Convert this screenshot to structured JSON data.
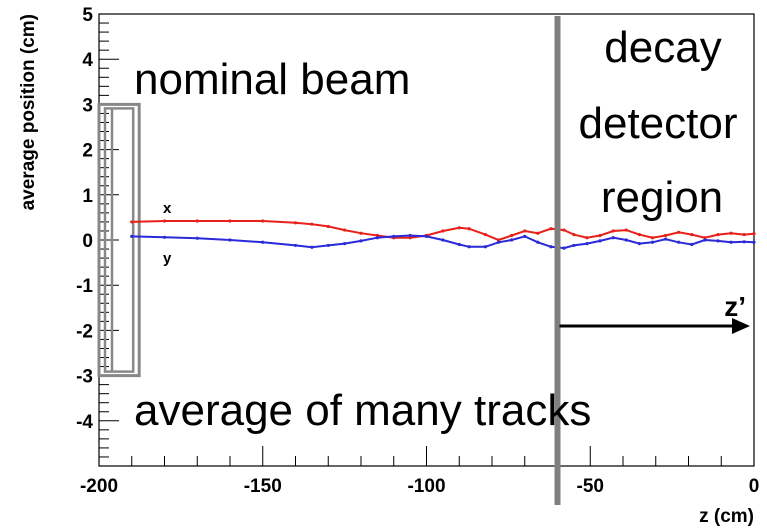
{
  "chart_data": {
    "type": "line",
    "title": "",
    "xlabel": "z (cm)",
    "ylabel": "average position (cm)",
    "xlim": [
      -200,
      0
    ],
    "ylim": [
      -5,
      5
    ],
    "x_ticks": [
      -200,
      -150,
      -100,
      -50,
      0
    ],
    "y_ticks": [
      5,
      4,
      3,
      2,
      1,
      0,
      -1,
      -2,
      -3,
      -4
    ],
    "grid": false,
    "series": [
      {
        "name": "x",
        "color": "#e8201a",
        "x": [
          -190,
          -180,
          -170,
          -160,
          -150,
          -140,
          -135,
          -130,
          -125,
          -120,
          -115,
          -110,
          -105,
          -100,
          -95,
          -90,
          -87,
          -82,
          -78,
          -74,
          -70,
          -66,
          -62,
          -58,
          -55,
          -51,
          -47,
          -43,
          -39,
          -35,
          -31,
          -27,
          -23,
          -19,
          -15,
          -11,
          -7,
          -3,
          0
        ],
        "values": [
          0.4,
          0.42,
          0.42,
          0.42,
          0.42,
          0.38,
          0.35,
          0.3,
          0.22,
          0.15,
          0.1,
          0.05,
          0.05,
          0.1,
          0.2,
          0.27,
          0.25,
          0.12,
          0.0,
          0.1,
          0.2,
          0.15,
          0.25,
          0.22,
          0.12,
          0.05,
          0.1,
          0.2,
          0.22,
          0.12,
          0.05,
          0.1,
          0.17,
          0.12,
          0.05,
          0.12,
          0.15,
          0.12,
          0.14
        ]
      },
      {
        "name": "y",
        "color": "#2a2ad8",
        "x": [
          -190,
          -180,
          -170,
          -160,
          -150,
          -140,
          -135,
          -130,
          -125,
          -120,
          -115,
          -110,
          -105,
          -100,
          -95,
          -90,
          -87,
          -82,
          -78,
          -74,
          -70,
          -66,
          -62,
          -58,
          -55,
          -51,
          -47,
          -43,
          -39,
          -35,
          -31,
          -27,
          -23,
          -19,
          -15,
          -11,
          -7,
          -3,
          0
        ],
        "values": [
          0.08,
          0.06,
          0.04,
          0.0,
          -0.05,
          -0.12,
          -0.16,
          -0.12,
          -0.08,
          -0.02,
          0.05,
          0.08,
          0.1,
          0.08,
          0.0,
          -0.1,
          -0.15,
          -0.15,
          -0.05,
          0.0,
          0.08,
          -0.05,
          -0.15,
          -0.18,
          -0.12,
          -0.08,
          -0.02,
          0.05,
          0.0,
          -0.08,
          -0.05,
          0.02,
          -0.05,
          -0.1,
          0.0,
          -0.02,
          -0.05,
          -0.04,
          -0.05
        ]
      }
    ],
    "series_labels": {
      "x": "x",
      "y": "y"
    },
    "annotations": {
      "nominal_beam": "nominal beam",
      "average_tracks": "average of many tracks",
      "decay_line1": "decay",
      "decay_line2": "detector",
      "decay_line3": "region",
      "zprime": "z’"
    },
    "decay_boundary_z": -60,
    "beam_box_z": [
      -200,
      -192
    ],
    "beam_box_y": [
      -3,
      3
    ]
  }
}
